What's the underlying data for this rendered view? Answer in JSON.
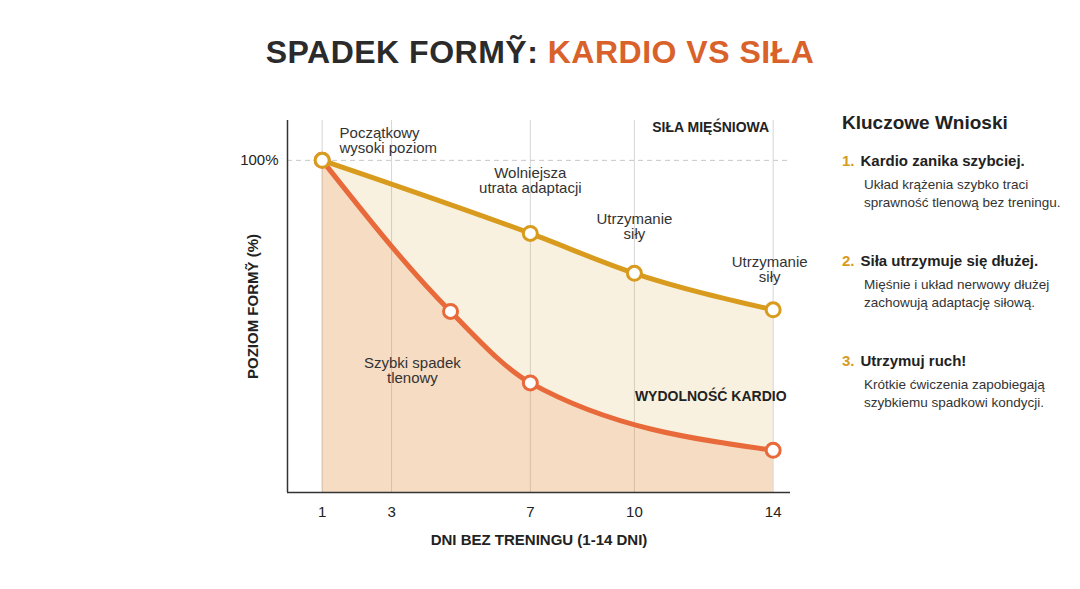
{
  "chart_data": {
    "type": "line",
    "title": "SPADEK FORMỸ: KARDIO VS SIŁA",
    "x_label": "DNI BEZ TRENINGU (1-14 DNI)",
    "y_label": "POZIOM FORMỸ (%)",
    "xlim": [
      0,
      14.5
    ],
    "xticks": [
      1,
      3,
      7,
      10,
      14
    ],
    "ylim": [
      0,
      112
    ],
    "yticks": [
      {
        "value": 100,
        "label": "100%"
      }
    ],
    "grid": true,
    "series": [
      {
        "name": "WYDOLNOŚĆ KARDIO",
        "color": "#e8693a",
        "marker": "circle",
        "x": [
          1,
          4.7,
          7,
          14
        ],
        "values": [
          100,
          54.5,
          33,
          12.7
        ]
      },
      {
        "name": "SIŁA MIĘŚNIOWA",
        "color": "#d89b1e",
        "marker": "circle",
        "x": [
          1,
          7,
          10,
          14
        ],
        "values": [
          100,
          78,
          66,
          55
        ]
      }
    ],
    "annotations": [
      "Początkowy wysoki poziom",
      "Wolniejsza utrata adaptacji",
      "Utrzymanie siły",
      "Utrzymanie siły",
      "Szybki spadek tlenowy"
    ]
  },
  "key_takeaways": {
    "title": "Kluczowe Wnioski",
    "items": [
      {
        "number": "1.",
        "heading": "Kardio zanika szybciej.",
        "text": "Układ krążenia szybko traci sprawność tlenową bez treningu."
      },
      {
        "number": "2.",
        "heading": "Siła utrzymuje się dłużej.",
        "text": "Mięśnie i układ nerwowy dłużej zachowują adaptację siłową."
      },
      {
        "number": "3.",
        "heading": "Utrzymuj ruch!",
        "text": "Krótkie ćwiczenia zapobiegają szybkiemu spadkowi kondycji."
      }
    ]
  }
}
